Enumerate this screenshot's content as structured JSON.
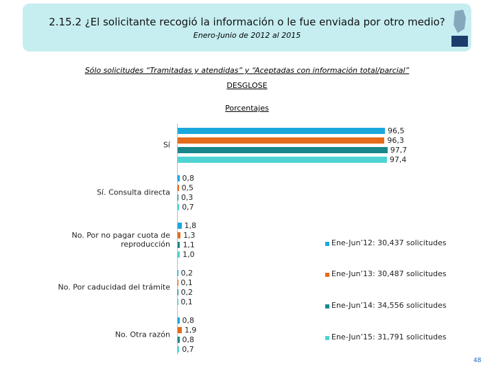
{
  "chart_data": {
    "type": "bar",
    "orientation": "horizontal",
    "title": "2.15.2 ¿El solicitante recogió la información o le fue enviada por otro medio?",
    "subtitle": "Enero-Junio de 2012 al 2015",
    "note": "Sólo solicitudes “Tramitadas y atendidas” y “Aceptadas con información total/parcial”",
    "heading": "DESGLOSE",
    "unit_label": "Porcentajes",
    "page_number": "48",
    "categories": [
      "Sí",
      "Sí. Consulta directa",
      "No. Por no pagar cuota de reproducción",
      "No. Por caducidad del trámite",
      "No. Otra razón"
    ],
    "series": [
      {
        "name": "Ene-Jun’12: 30,437 solicitudes",
        "color": "#1ba7dc",
        "values": [
          96.5,
          0.8,
          1.8,
          0.2,
          0.8
        ],
        "value_labels": [
          "96,5",
          "0,8",
          "1,8",
          "0,2",
          "0,8"
        ]
      },
      {
        "name": "Ene-Jun’13: 30,487 solicitudes",
        "color": "#e46c1a",
        "values": [
          96.3,
          0.5,
          1.3,
          0.1,
          1.9
        ],
        "value_labels": [
          "96,3",
          "0,5",
          "1,3",
          "0,1",
          "1,9"
        ]
      },
      {
        "name": "Ene-Jun’14: 34,556 solicitudes",
        "color": "#17878c",
        "values": [
          97.7,
          0.3,
          1.1,
          0.2,
          0.8
        ],
        "value_labels": [
          "97,7",
          "0,3",
          "1,1",
          "0,2",
          "0,8"
        ]
      },
      {
        "name": "Ene-Jun’15: 31,791 solicitudes",
        "color": "#4fd3d3",
        "values": [
          97.4,
          0.7,
          1.0,
          0.1,
          0.7
        ],
        "value_labels": [
          "97,4",
          "0,7",
          "1,0",
          "0,1",
          "0,7"
        ]
      }
    ],
    "legend": "right"
  }
}
